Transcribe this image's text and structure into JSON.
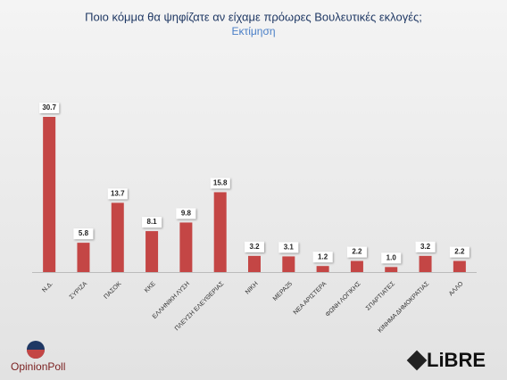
{
  "chart_data": {
    "type": "bar",
    "title": "Ποιο κόμμα θα ψηφίζατε αν είχαμε πρόωρες Βουλευτικές εκλογές;",
    "subtitle": "Εκτίμηση",
    "categories": [
      "Ν.Δ.",
      "ΣΥΡΙΖΑ",
      "ΠΑΣΟΚ",
      "ΚΚΕ",
      "ΕΛΛΗΝΙΚΗ ΛΥΣΗ",
      "ΠΛΕΥΣΗ ΕΛΕΥΘΕΡΙΑΣ",
      "ΝΙΚΗ",
      "ΜΕΡΑ25",
      "ΝΕΑ ΑΡΙΣΤΕΡΑ",
      "ΦΩΝΗ ΛΟΓΙΚΗΣ",
      "ΣΠΑΡΤΙΑΤΕΣ",
      "ΚΙΝΗΜΑ ΔΗΜΟΚΡΑΤΙΑΣ",
      "ΑΛΛΟ"
    ],
    "values": [
      30.7,
      5.8,
      13.7,
      8.1,
      9.8,
      15.8,
      3.2,
      3.1,
      1.2,
      2.2,
      1.0,
      3.2,
      2.2
    ],
    "value_labels": [
      "30.7",
      "5.8",
      "13.7",
      "8.1",
      "9.8",
      "15.8",
      "3.2",
      "3.1",
      "1.2",
      "2.2",
      "1.0",
      "3.2",
      "2.2"
    ],
    "color": "#c44645"
  },
  "logos": {
    "left": "OpinionPoll",
    "right": "LiBRE"
  }
}
